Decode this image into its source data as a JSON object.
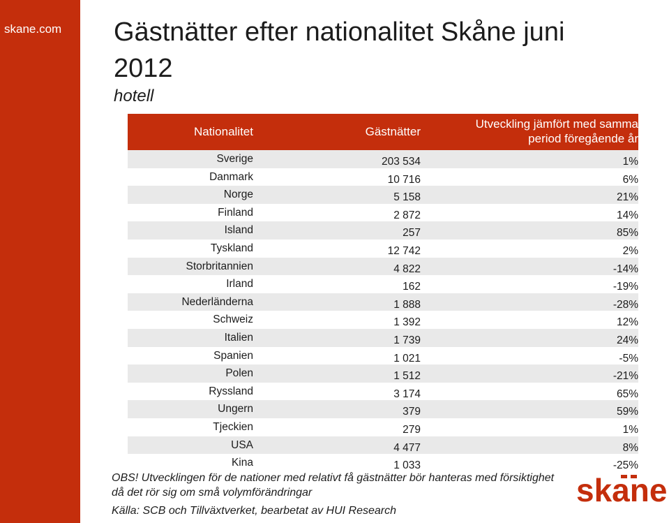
{
  "brand": "skane.com",
  "title": "Gästnätter efter nationalitet Skåne juni 2012",
  "subtitle": "hotell",
  "table": {
    "headers": {
      "nationality": "Nationalitet",
      "nights": "Gästnätter",
      "change_line1": "Utveckling jämfört med samma",
      "change_line2": "period föregående år"
    },
    "rows": [
      {
        "nationality": "Sverige",
        "nights": "203 534",
        "change": "1%"
      },
      {
        "nationality": "Danmark",
        "nights": "10 716",
        "change": "6%"
      },
      {
        "nationality": "Norge",
        "nights": "5 158",
        "change": "21%"
      },
      {
        "nationality": "Finland",
        "nights": "2 872",
        "change": "14%"
      },
      {
        "nationality": "Island",
        "nights": "257",
        "change": "85%"
      },
      {
        "nationality": "Tyskland",
        "nights": "12 742",
        "change": "2%"
      },
      {
        "nationality": "Storbritannien",
        "nights": "4 822",
        "change": "-14%"
      },
      {
        "nationality": "Irland",
        "nights": "162",
        "change": "-19%"
      },
      {
        "nationality": "Nederländerna",
        "nights": "1 888",
        "change": "-28%"
      },
      {
        "nationality": "Schweiz",
        "nights": "1 392",
        "change": "12%"
      },
      {
        "nationality": "Italien",
        "nights": "1 739",
        "change": "24%"
      },
      {
        "nationality": "Spanien",
        "nights": "1 021",
        "change": "-5%"
      },
      {
        "nationality": "Polen",
        "nights": "1 512",
        "change": "-21%"
      },
      {
        "nationality": "Ryssland",
        "nights": "3 174",
        "change": "65%"
      },
      {
        "nationality": "Ungern",
        "nights": "379",
        "change": "59%"
      },
      {
        "nationality": "Tjeckien",
        "nights": "279",
        "change": "1%"
      },
      {
        "nationality": "USA",
        "nights": "4 477",
        "change": "8%"
      },
      {
        "nationality": "Kina",
        "nights": "1 033",
        "change": "-25%"
      }
    ]
  },
  "note": {
    "line1": "OBS! Utvecklingen för de nationer med relativt få gästnätter bör hanteras med försiktighet",
    "line2": "då det rör sig om små volymförändringar"
  },
  "source": "Källa: SCB och Tillväxtverket, bearbetat av HUI Research",
  "logo": {
    "text": "skane",
    "color": "#c42e0c"
  },
  "colors": {
    "accent": "#c42e0c",
    "stripe": "#e9e9e9"
  }
}
